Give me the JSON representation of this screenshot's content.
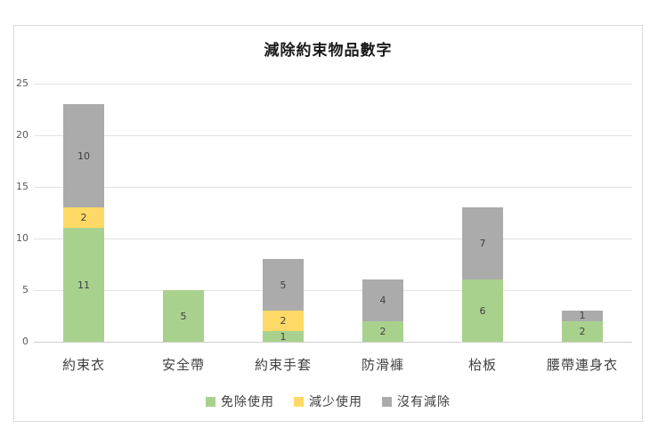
{
  "chart_data": {
    "type": "bar",
    "stacked": true,
    "title": "減除約束物品數字",
    "categories": [
      "約束衣",
      "安全帶",
      "約束手套",
      "防滑褲",
      "枱板",
      "腰帶連身衣"
    ],
    "series": [
      {
        "name": "免除使用",
        "color": "#A9D18E",
        "values": [
          11,
          5,
          1,
          2,
          6,
          2
        ]
      },
      {
        "name": "減少使用",
        "color": "#FFD966",
        "values": [
          2,
          0,
          2,
          0,
          0,
          0
        ]
      },
      {
        "name": "沒有減除",
        "color": "#ABABAB",
        "values": [
          10,
          0,
          5,
          4,
          7,
          1
        ]
      }
    ],
    "totals": [
      23,
      5,
      8,
      6,
      13,
      3
    ],
    "ylim": [
      0,
      25
    ],
    "ytick_step": 5,
    "ytick_labels": [
      "0",
      "5",
      "10",
      "15",
      "20",
      "25"
    ],
    "grid": "horizontal",
    "legend_position": "bottom",
    "show_segment_labels": true,
    "frame_border_color": "#D9D9D9",
    "gridline_color": "#E2E2E2",
    "axis_label_color": "#595959",
    "segment_label_color": "#3F3F3F"
  }
}
